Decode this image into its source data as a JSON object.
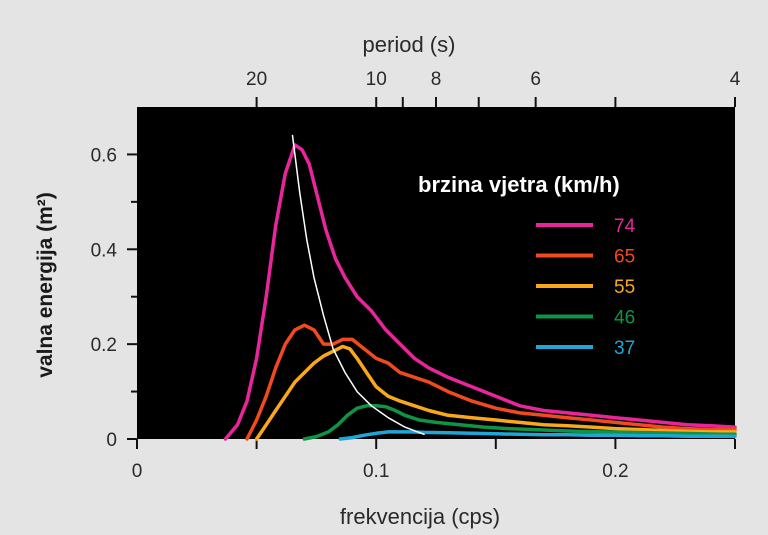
{
  "chart_data": {
    "type": "line",
    "xlabel": "frekvencija (cps)",
    "ylabel": "valna energija (m²)",
    "top_axis_label": "period (s)",
    "xlim": [
      0,
      0.25
    ],
    "ylim": [
      0,
      0.7
    ],
    "x_ticks": [
      0,
      0.1,
      0.2
    ],
    "x_tick_labels": [
      "0",
      "0.1",
      "0.2"
    ],
    "y_ticks": [
      0,
      0.2,
      0.4,
      0.6
    ],
    "y_tick_labels": [
      "0",
      "0.2",
      "0.4",
      "0.6"
    ],
    "top_ticks": [
      20,
      10,
      8,
      6,
      4
    ],
    "top_tick_labels": [
      "20",
      "10",
      "8",
      "6",
      "4"
    ],
    "top_minor_ticks": [
      9,
      7,
      5
    ],
    "plot_background": "#000000",
    "legend": {
      "title": "brzina vjetra (km/h)",
      "placement": "right"
    },
    "series": [
      {
        "name": "74",
        "color": "#e8259a",
        "x": [
          0.037,
          0.042,
          0.046,
          0.05,
          0.054,
          0.058,
          0.062,
          0.066,
          0.069,
          0.072,
          0.075,
          0.079,
          0.083,
          0.087,
          0.092,
          0.098,
          0.104,
          0.11,
          0.116,
          0.122,
          0.13,
          0.14,
          0.15,
          0.16,
          0.17,
          0.18,
          0.19,
          0.2,
          0.21,
          0.22,
          0.23,
          0.24,
          0.25
        ],
        "y": [
          0.0,
          0.03,
          0.08,
          0.17,
          0.3,
          0.45,
          0.56,
          0.62,
          0.61,
          0.58,
          0.52,
          0.44,
          0.38,
          0.34,
          0.3,
          0.27,
          0.23,
          0.2,
          0.17,
          0.15,
          0.13,
          0.11,
          0.09,
          0.07,
          0.06,
          0.055,
          0.05,
          0.045,
          0.04,
          0.035,
          0.03,
          0.028,
          0.025
        ]
      },
      {
        "name": "65",
        "color": "#f04a1e",
        "x": [
          0.046,
          0.05,
          0.054,
          0.058,
          0.062,
          0.066,
          0.07,
          0.074,
          0.078,
          0.082,
          0.086,
          0.09,
          0.095,
          0.1,
          0.105,
          0.11,
          0.116,
          0.122,
          0.13,
          0.14,
          0.15,
          0.16,
          0.17,
          0.18,
          0.19,
          0.2,
          0.21,
          0.22,
          0.23,
          0.24,
          0.25
        ],
        "y": [
          0.0,
          0.04,
          0.09,
          0.15,
          0.2,
          0.23,
          0.24,
          0.23,
          0.2,
          0.2,
          0.21,
          0.21,
          0.19,
          0.17,
          0.16,
          0.14,
          0.13,
          0.12,
          0.1,
          0.08,
          0.065,
          0.055,
          0.05,
          0.045,
          0.04,
          0.035,
          0.03,
          0.025,
          0.022,
          0.02,
          0.02
        ]
      },
      {
        "name": "55",
        "color": "#f9a81b",
        "x": [
          0.05,
          0.054,
          0.058,
          0.062,
          0.066,
          0.07,
          0.074,
          0.078,
          0.082,
          0.086,
          0.089,
          0.092,
          0.096,
          0.1,
          0.105,
          0.11,
          0.116,
          0.122,
          0.13,
          0.14,
          0.15,
          0.16,
          0.17,
          0.18,
          0.19,
          0.2,
          0.21,
          0.22,
          0.23,
          0.24,
          0.25
        ],
        "y": [
          0.0,
          0.03,
          0.06,
          0.09,
          0.12,
          0.14,
          0.16,
          0.175,
          0.185,
          0.195,
          0.19,
          0.17,
          0.14,
          0.11,
          0.09,
          0.08,
          0.07,
          0.06,
          0.05,
          0.045,
          0.04,
          0.035,
          0.03,
          0.028,
          0.025,
          0.022,
          0.02,
          0.018,
          0.016,
          0.015,
          0.015
        ]
      },
      {
        "name": "46",
        "color": "#0f9447",
        "x": [
          0.07,
          0.075,
          0.08,
          0.084,
          0.088,
          0.092,
          0.096,
          0.1,
          0.104,
          0.108,
          0.112,
          0.118,
          0.125,
          0.135,
          0.145,
          0.155,
          0.165,
          0.175,
          0.185,
          0.195,
          0.205,
          0.215,
          0.225,
          0.235,
          0.245,
          0.25
        ],
        "y": [
          0.0,
          0.005,
          0.015,
          0.03,
          0.05,
          0.065,
          0.07,
          0.07,
          0.068,
          0.06,
          0.05,
          0.04,
          0.035,
          0.03,
          0.025,
          0.022,
          0.02,
          0.018,
          0.016,
          0.015,
          0.014,
          0.013,
          0.012,
          0.011,
          0.01,
          0.01
        ]
      },
      {
        "name": "37",
        "color": "#1fa6d6",
        "x": [
          0.085,
          0.09,
          0.095,
          0.1,
          0.105,
          0.11,
          0.115,
          0.12,
          0.13,
          0.14,
          0.15,
          0.16,
          0.17,
          0.18,
          0.19,
          0.2,
          0.21,
          0.22,
          0.23,
          0.24,
          0.25
        ],
        "y": [
          0.0,
          0.003,
          0.008,
          0.012,
          0.015,
          0.015,
          0.015,
          0.014,
          0.013,
          0.012,
          0.011,
          0.01,
          0.009,
          0.009,
          0.008,
          0.008,
          0.007,
          0.007,
          0.006,
          0.006,
          0.006
        ]
      },
      {
        "name": "",
        "color": "#ffffff",
        "x": [
          0.065,
          0.068,
          0.071,
          0.074,
          0.078,
          0.082,
          0.087,
          0.092,
          0.098,
          0.105,
          0.112,
          0.12
        ],
        "y": [
          0.64,
          0.52,
          0.42,
          0.34,
          0.26,
          0.19,
          0.14,
          0.1,
          0.07,
          0.045,
          0.025,
          0.01
        ]
      }
    ]
  }
}
